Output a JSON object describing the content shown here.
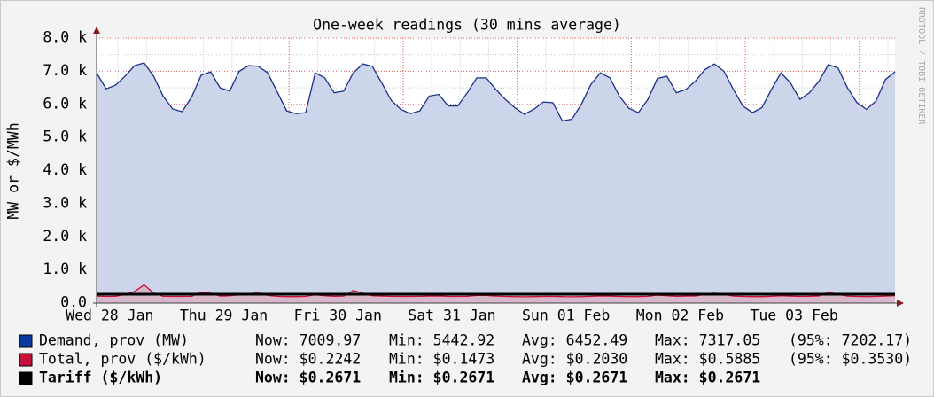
{
  "chart_data": {
    "type": "area",
    "title": "One-week readings (30 mins average)",
    "y_label": "MW or $/MWh",
    "side_text": "RRDTOOL / TOBI OETIKER",
    "grid": true,
    "xlim": [
      0,
      168
    ],
    "xticks": [
      {
        "value": 16.5,
        "label": "Wed 28 Jan"
      },
      {
        "value": 40.5,
        "label": "Thu 29 Jan"
      },
      {
        "value": 64.5,
        "label": "Fri 30 Jan"
      },
      {
        "value": 88.5,
        "label": "Sat 31 Jan"
      },
      {
        "value": 112.5,
        "label": "Sun 01 Feb"
      },
      {
        "value": 136.5,
        "label": "Mon 02 Feb"
      },
      {
        "value": 160.5,
        "label": "Tue 03 Feb"
      }
    ],
    "ylim": [
      0,
      8000
    ],
    "yticks": [
      {
        "value": 0,
        "label": "0.0"
      },
      {
        "value": 1000,
        "label": "1.0 k"
      },
      {
        "value": 2000,
        "label": "2.0 k"
      },
      {
        "value": 3000,
        "label": "3.0 k"
      },
      {
        "value": 4000,
        "label": "4.0 k"
      },
      {
        "value": 5000,
        "label": "5.0 k"
      },
      {
        "value": 6000,
        "label": "6.0 k"
      },
      {
        "value": 7000,
        "label": "7.0 k"
      },
      {
        "value": 8000,
        "label": "8.0 k"
      }
    ],
    "x": [
      0,
      2,
      4,
      6,
      8,
      10,
      12,
      14,
      16,
      18,
      20,
      22,
      24,
      26,
      28,
      30,
      32,
      34,
      36,
      38,
      40,
      42,
      44,
      46,
      48,
      50,
      52,
      54,
      56,
      58,
      60,
      62,
      64,
      66,
      68,
      70,
      72,
      74,
      76,
      78,
      80,
      82,
      84,
      86,
      88,
      90,
      92,
      94,
      96,
      98,
      100,
      102,
      104,
      106,
      108,
      110,
      112,
      114,
      116,
      118,
      120,
      122,
      124,
      126,
      128,
      130,
      132,
      134,
      136,
      138,
      140,
      142,
      144,
      146,
      148,
      150,
      152,
      154,
      156,
      158,
      160,
      162,
      164,
      166,
      168
    ],
    "series": [
      {
        "name": "Demand, prov (MW)",
        "color": "#1a2e8a",
        "fill": "#cdd5ea",
        "swatch": "#0b3aa0",
        "bold": false,
        "values": [
          6950,
          6470,
          6580,
          6850,
          7170,
          7250,
          6850,
          6250,
          5860,
          5780,
          6220,
          6880,
          6980,
          6500,
          6400,
          7000,
          7170,
          7150,
          6950,
          6380,
          5800,
          5720,
          5750,
          6950,
          6800,
          6350,
          6400,
          6950,
          7220,
          7150,
          6650,
          6120,
          5850,
          5720,
          5800,
          6250,
          6300,
          5950,
          5950,
          6350,
          6800,
          6800,
          6450,
          6150,
          5900,
          5700,
          5850,
          6070,
          6050,
          5500,
          5550,
          6000,
          6600,
          6950,
          6800,
          6250,
          5880,
          5750,
          6150,
          6780,
          6850,
          6350,
          6450,
          6700,
          7050,
          7220,
          7000,
          6450,
          5950,
          5750,
          5900,
          6450,
          6950,
          6650,
          6150,
          6350,
          6700,
          7200,
          7100,
          6500,
          6050,
          5850,
          6100,
          6750,
          6980
        ],
        "stats": [
          "Now: 7009.97",
          "Min: 5442.92",
          "Avg: 6452.49",
          "Max: 7317.05",
          "(95%: 7202.17)"
        ]
      },
      {
        "name": "Total, prov ($/kWh)",
        "color": "#c8103a",
        "fill": "#d9b7cb",
        "swatch": "#c8103a",
        "bold": false,
        "values": [
          210,
          200,
          205,
          260,
          350,
          550,
          300,
          205,
          200,
          200,
          205,
          330,
          300,
          210,
          220,
          250,
          280,
          310,
          230,
          205,
          195,
          195,
          200,
          250,
          220,
          205,
          210,
          380,
          300,
          220,
          210,
          205,
          200,
          200,
          205,
          210,
          215,
          200,
          200,
          205,
          230,
          230,
          210,
          200,
          195,
          190,
          195,
          200,
          200,
          195,
          190,
          195,
          205,
          215,
          210,
          200,
          195,
          195,
          205,
          240,
          220,
          205,
          210,
          215,
          260,
          300,
          260,
          210,
          200,
          195,
          195,
          205,
          220,
          210,
          200,
          205,
          215,
          330,
          260,
          210,
          200,
          195,
          200,
          210,
          224
        ],
        "stats": [
          "Now: $0.2242",
          "Min: $0.1473",
          "Avg: $0.2030",
          "Max: $0.5885",
          "(95%: $0.3530)"
        ]
      },
      {
        "name": "Tariff ($/kWh)",
        "color": "#000000",
        "swatch": "#000000",
        "bold": true,
        "values": [
          267,
          267,
          267,
          267,
          267,
          267,
          267,
          267,
          267,
          267,
          267,
          267,
          267,
          267,
          267,
          267,
          267,
          267,
          267,
          267,
          267,
          267,
          267,
          267,
          267,
          267,
          267,
          267,
          267,
          267,
          267,
          267,
          267,
          267,
          267,
          267,
          267,
          267,
          267,
          267,
          267,
          267,
          267,
          267,
          267,
          267,
          267,
          267,
          267,
          267,
          267,
          267,
          267,
          267,
          267,
          267,
          267,
          267,
          267,
          267,
          267,
          267,
          267,
          267,
          267,
          267,
          267,
          267,
          267,
          267,
          267,
          267,
          267,
          267,
          267,
          267,
          267,
          267,
          267,
          267,
          267,
          267,
          267,
          267,
          267
        ],
        "stats": [
          "Now: $0.2671",
          "Min: $0.2671",
          "Avg: $0.2671",
          "Max: $0.2671"
        ]
      }
    ]
  }
}
